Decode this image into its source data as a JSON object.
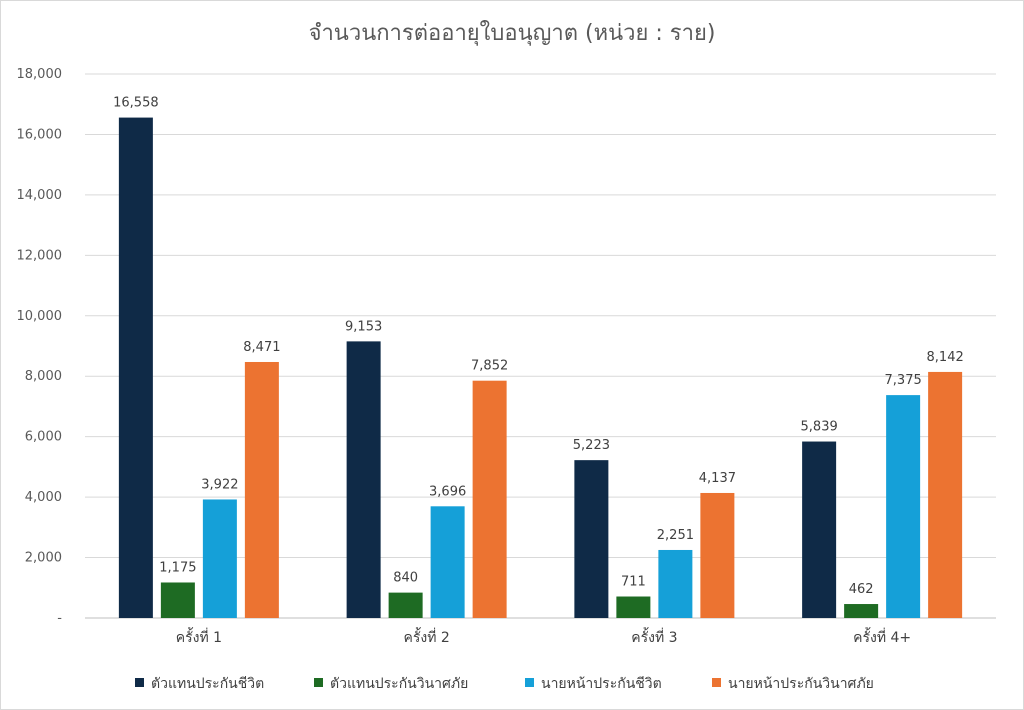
{
  "chart_data": {
    "type": "bar",
    "title": "จำนวนการต่ออายุใบอนุญาต (หน่วย : ราย)",
    "categories": [
      "ครั้งที่ 1",
      "ครั้งที่ 2",
      "ครั้งที่ 3",
      "ครั้งที่ 4+"
    ],
    "series": [
      {
        "name": "ตัวแทนประกันชีวิต",
        "color": "#0f2a47",
        "values": [
          16558,
          9153,
          5223,
          5839
        ],
        "labels": [
          "16,558",
          "9,153",
          "5,223",
          "5,839"
        ]
      },
      {
        "name": "ตัวแทนประกันวินาศภัย",
        "color": "#1e6b23",
        "values": [
          1175,
          840,
          711,
          462
        ],
        "labels": [
          "1,175",
          "840",
          "711",
          "462"
        ]
      },
      {
        "name": "นายหน้าประกันชีวิต",
        "color": "#15a0d8",
        "values": [
          3922,
          3696,
          2251,
          7375
        ],
        "labels": [
          "3,922",
          "3,696",
          "2,251",
          "7,375"
        ]
      },
      {
        "name": "นายหน้าประกันวินาศภัย",
        "color": "#ec7331",
        "values": [
          8471,
          7852,
          4137,
          8142
        ],
        "labels": [
          "8,471",
          "7,852",
          "4,137",
          "8,142"
        ]
      }
    ],
    "yticks": [
      0,
      2000,
      4000,
      6000,
      8000,
      10000,
      12000,
      14000,
      16000,
      18000
    ],
    "ytick_labels": [
      "-",
      "2,000",
      "4,000",
      "6,000",
      "8,000",
      "10,000",
      "12,000",
      "14,000",
      "16,000",
      "18,000"
    ],
    "ylim": [
      0,
      18000
    ],
    "grid": true,
    "legend_position": "bottom"
  }
}
